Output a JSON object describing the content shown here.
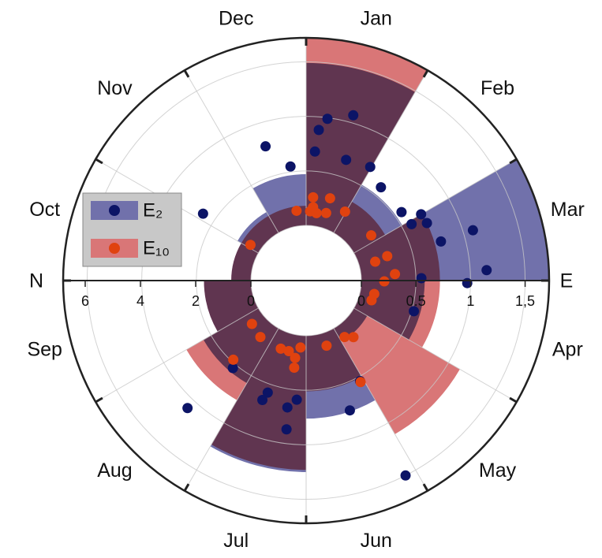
{
  "chart_data": {
    "type": "polar_bar",
    "categories": [
      "Jan",
      "Feb",
      "Mar",
      "Apr",
      "May",
      "Jun",
      "Jul",
      "Aug",
      "Sep",
      "Oct",
      "Nov",
      "Dec"
    ],
    "direction_labels": [
      "E",
      "N"
    ],
    "thetalim": [
      0,
      12
    ],
    "rlim": [
      0,
      1.72
    ],
    "rticks": [
      0,
      0.5,
      1,
      {
        "value": 1.5,
        "label": "1,5"
      }
    ],
    "r2lim": [
      0,
      6.8
    ],
    "r2ticks": [
      0,
      2,
      4,
      6
    ],
    "grid": true,
    "legend": "upper-left",
    "series": [
      {
        "name": "E₂",
        "color": "#7171ab",
        "point_color": "#0c1466",
        "values": [
          1.49,
          0.51,
          1.72,
          0.58,
          0.14,
          0.76,
          1.25,
          0.58,
          0.43,
          0.18,
          0.22,
          0.47
        ],
        "points": {
          "theta": [
            0.53,
            0.25,
            0.16,
            11.44,
            0.13,
            0.61,
            0.98,
            11.74,
            1.29,
            1.81,
            2.0,
            2.06,
            2.15,
            2.44,
            2.46,
            2.89,
            3.03,
            2.96,
            3.53,
            10.1,
            5.06,
            5.38,
            5.1,
            7.33,
            7.43,
            6.63,
            6.67,
            6.15,
            6.28,
            6.25
          ],
          "r": [
            1.07,
            0.99,
            0.88,
            0.78,
            0.68,
            0.66,
            0.69,
            0.55,
            0.59,
            0.57,
            0.71,
            0.59,
            0.72,
            1.09,
            0.78,
            1.15,
            0.97,
            0.55,
            0.52,
            0.62,
            0.54,
            0.75,
            1.5,
            0.54,
            1.09,
            0.58,
            0.66,
            0.59,
            0.67,
            0.87
          ]
        }
      },
      {
        "name": "E₁₀",
        "color": "#d97677",
        "point_color": "#e0420f",
        "values": [
          1.72,
          0.33,
          0.72,
          0.72,
          1.12,
          0.51,
          1.23,
          0.76,
          0.43,
          0.18,
          0.18,
          0.18
        ],
        "points": {
          "theta": [
            0.16,
            0.54,
            11.74,
            0.11,
            0.29,
            0.55,
            0.98,
            0.18,
            1.84,
            2.44,
            2.49,
            2.86,
            3.02,
            3.37,
            3.56,
            4.86,
            4.67,
            5.06,
            10.09,
            7.42,
            7.71,
            7.3,
            6.68,
            6.46,
            6.16,
            6.27,
            6.26,
            5.42
          ],
          "r": [
            0.26,
            0.28,
            0.14,
            0.13,
            0.12,
            0.14,
            0.22,
            0.17,
            0.22,
            0.27,
            0.15,
            0.31,
            0.21,
            0.13,
            0.12,
            0.12,
            0.17,
            0.55,
            0.1,
            0.48,
            0.13,
            0.16,
            0.16,
            0.16,
            0.11,
            0.21,
            0.3,
            0.12
          ]
        }
      }
    ]
  }
}
